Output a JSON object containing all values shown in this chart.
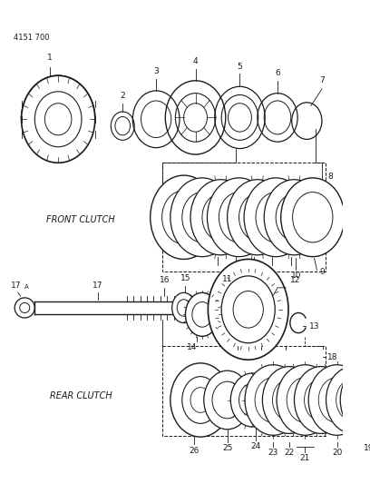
{
  "doc_number": "4151 700",
  "background_color": "#ffffff",
  "line_color": "#1a1a1a",
  "text_color": "#1a1a1a",
  "front_clutch_label": "FRONT CLUTCH",
  "rear_clutch_label": "REAR CLUTCH",
  "figsize": [
    4.08,
    5.33
  ],
  "dpi": 100
}
